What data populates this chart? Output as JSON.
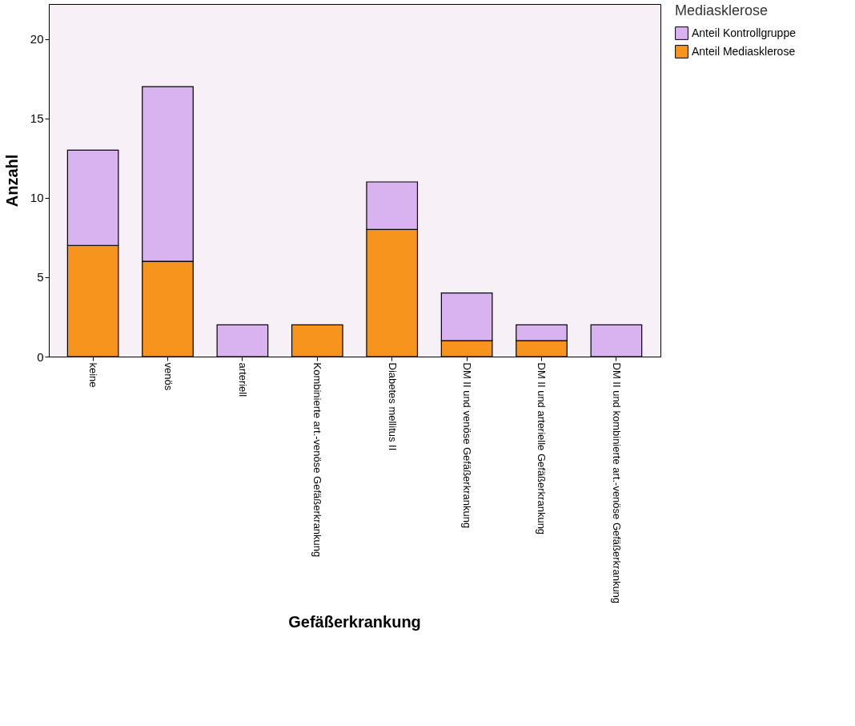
{
  "chart_data": {
    "type": "bar",
    "stacked": true,
    "xlabel": "Gefäßerkrankung",
    "ylabel": "Anzahl",
    "legend_title": "Mediasklerose",
    "legend": "right",
    "categories": [
      "keine",
      "venös",
      "arteriell",
      "Kombinierte art.-venöse Gefäßerkrankung",
      "Diabetes mellitus II",
      "DM II und venöse Gefäßerkrankung",
      "DM II und arterielle Gefäßerkrankung",
      "DM II und kombinierte art.-venöse Gefäßerkrankung"
    ],
    "series": [
      {
        "name": "Anteil Mediasklerose",
        "color": "#f7941d",
        "values": [
          7,
          6,
          0,
          2,
          8,
          1,
          1,
          0
        ]
      },
      {
        "name": "Anteil Kontrollgruppe",
        "color": "#d9b3f0",
        "values": [
          6,
          11,
          2,
          0,
          3,
          3,
          1,
          2
        ]
      }
    ],
    "ylim": [
      0,
      22.2
    ],
    "yticks": [
      0,
      5,
      10,
      15,
      20
    ],
    "grid": false
  }
}
